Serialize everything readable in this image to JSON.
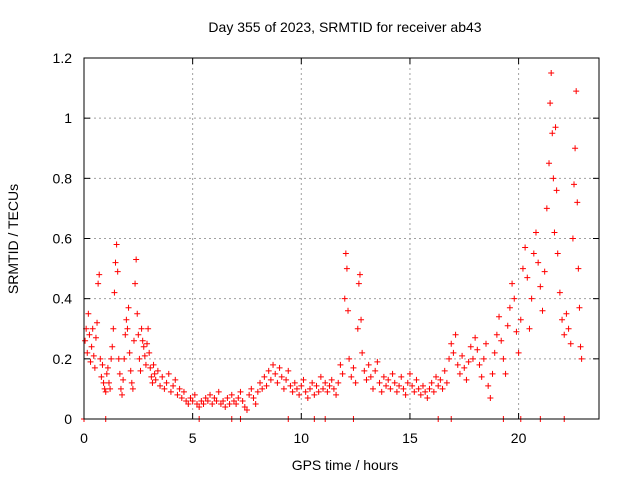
{
  "chart_data": {
    "type": "scatter",
    "title": "Day 355 of 2023, SRMTID for receiver ab43",
    "xlabel": "GPS time / hours",
    "ylabel": "SRMTID / TECUs",
    "xlim": [
      0,
      23.7
    ],
    "ylim": [
      0,
      1.2
    ],
    "xticks": [
      0,
      5,
      10,
      15,
      20
    ],
    "xtick_labels": [
      "0",
      "5",
      "10",
      "15",
      "20"
    ],
    "yticks": [
      0,
      0.2,
      0.4,
      0.6,
      0.8,
      1.0,
      1.2
    ],
    "ytick_labels": [
      "0",
      "0.2",
      "0.4",
      "0.6",
      "0.8",
      "1",
      "1.2"
    ],
    "grid": true,
    "marker": "+",
    "color": "#ff0000",
    "series": [
      {
        "name": "SRMTID",
        "points": [
          [
            0.05,
            0.26
          ],
          [
            0.1,
            0.3
          ],
          [
            0.15,
            0.22
          ],
          [
            0.2,
            0.35
          ],
          [
            0.25,
            0.28
          ],
          [
            0.3,
            0.19
          ],
          [
            0.35,
            0.24
          ],
          [
            0.4,
            0.3
          ],
          [
            0.45,
            0.21
          ],
          [
            0.5,
            0.17
          ],
          [
            0.55,
            0.27
          ],
          [
            0.6,
            0.32
          ],
          [
            0.65,
            0.45
          ],
          [
            0.7,
            0.48
          ],
          [
            0.75,
            0.2
          ],
          [
            0.8,
            0.14
          ],
          [
            0.85,
            0.18
          ],
          [
            0.9,
            0.12
          ],
          [
            0.95,
            0.1
          ],
          [
            1.0,
            0.09
          ],
          [
            1.05,
            0.15
          ],
          [
            1.1,
            0.17
          ],
          [
            1.15,
            0.12
          ],
          [
            1.2,
            0.1
          ],
          [
            1.25,
            0.2
          ],
          [
            1.3,
            0.24
          ],
          [
            1.35,
            0.3
          ],
          [
            1.4,
            0.42
          ],
          [
            1.45,
            0.52
          ],
          [
            1.5,
            0.58
          ],
          [
            1.55,
            0.49
          ],
          [
            1.6,
            0.2
          ],
          [
            1.65,
            0.15
          ],
          [
            1.7,
            0.1
          ],
          [
            1.75,
            0.08
          ],
          [
            1.8,
            0.13
          ],
          [
            1.85,
            0.2
          ],
          [
            1.9,
            0.28
          ],
          [
            1.95,
            0.33
          ],
          [
            2.0,
            0.3
          ],
          [
            2.05,
            0.37
          ],
          [
            2.1,
            0.22
          ],
          [
            2.15,
            0.16
          ],
          [
            2.2,
            0.12
          ],
          [
            2.25,
            0.1
          ],
          [
            2.3,
            0.26
          ],
          [
            2.35,
            0.45
          ],
          [
            2.4,
            0.53
          ],
          [
            2.45,
            0.35
          ],
          [
            2.5,
            0.28
          ],
          [
            2.55,
            0.2
          ],
          [
            2.6,
            0.16
          ],
          [
            2.65,
            0.3
          ],
          [
            2.7,
            0.26
          ],
          [
            2.75,
            0.24
          ],
          [
            2.8,
            0.21
          ],
          [
            2.85,
            0.18
          ],
          [
            2.9,
            0.25
          ],
          [
            2.95,
            0.3
          ],
          [
            3.0,
            0.22
          ],
          [
            3.05,
            0.17
          ],
          [
            3.1,
            0.14
          ],
          [
            3.15,
            0.12
          ],
          [
            3.2,
            0.18
          ],
          [
            3.25,
            0.15
          ],
          [
            3.3,
            0.13
          ],
          [
            3.4,
            0.16
          ],
          [
            3.5,
            0.11
          ],
          [
            3.6,
            0.14
          ],
          [
            3.7,
            0.1
          ],
          [
            3.8,
            0.12
          ],
          [
            3.9,
            0.15
          ],
          [
            4.0,
            0.09
          ],
          [
            4.1,
            0.11
          ],
          [
            4.2,
            0.13
          ],
          [
            4.3,
            0.08
          ],
          [
            4.4,
            0.1
          ],
          [
            4.5,
            0.07
          ],
          [
            4.6,
            0.09
          ],
          [
            4.7,
            0.06
          ],
          [
            4.8,
            0.05
          ],
          [
            4.9,
            0.07
          ],
          [
            5.0,
            0.06
          ],
          [
            5.1,
            0.08
          ],
          [
            5.2,
            0.05
          ],
          [
            5.3,
            0.04
          ],
          [
            5.4,
            0.06
          ],
          [
            5.5,
            0.05
          ],
          [
            5.6,
            0.07
          ],
          [
            5.7,
            0.06
          ],
          [
            5.8,
            0.08
          ],
          [
            5.9,
            0.05
          ],
          [
            6.0,
            0.07
          ],
          [
            6.1,
            0.06
          ],
          [
            6.2,
            0.09
          ],
          [
            6.3,
            0.05
          ],
          [
            6.4,
            0.06
          ],
          [
            6.5,
            0.04
          ],
          [
            6.6,
            0.07
          ],
          [
            6.7,
            0.05
          ],
          [
            6.8,
            0.08
          ],
          [
            6.9,
            0.06
          ],
          [
            7.0,
            0.05
          ],
          [
            7.1,
            0.07
          ],
          [
            7.2,
            0.09
          ],
          [
            7.3,
            0.06
          ],
          [
            7.4,
            0.04
          ],
          [
            7.5,
            0.03
          ],
          [
            7.6,
            0.08
          ],
          [
            7.7,
            0.1
          ],
          [
            7.8,
            0.07
          ],
          [
            7.9,
            0.05
          ],
          [
            8.0,
            0.09
          ],
          [
            8.1,
            0.12
          ],
          [
            8.2,
            0.1
          ],
          [
            8.3,
            0.14
          ],
          [
            8.4,
            0.11
          ],
          [
            8.5,
            0.16
          ],
          [
            8.6,
            0.13
          ],
          [
            8.7,
            0.18
          ],
          [
            8.8,
            0.15
          ],
          [
            8.9,
            0.12
          ],
          [
            9.0,
            0.17
          ],
          [
            9.1,
            0.14
          ],
          [
            9.2,
            0.1
          ],
          [
            9.3,
            0.13
          ],
          [
            9.4,
            0.16
          ],
          [
            9.5,
            0.11
          ],
          [
            9.6,
            0.09
          ],
          [
            9.7,
            0.12
          ],
          [
            9.8,
            0.1
          ],
          [
            9.9,
            0.08
          ],
          [
            10.0,
            0.11
          ],
          [
            10.1,
            0.13
          ],
          [
            10.2,
            0.09
          ],
          [
            10.3,
            0.07
          ],
          [
            10.4,
            0.1
          ],
          [
            10.5,
            0.12
          ],
          [
            10.6,
            0.08
          ],
          [
            10.7,
            0.11
          ],
          [
            10.8,
            0.09
          ],
          [
            10.9,
            0.14
          ],
          [
            11.0,
            0.1
          ],
          [
            11.1,
            0.12
          ],
          [
            11.2,
            0.09
          ],
          [
            11.3,
            0.11
          ],
          [
            11.4,
            0.13
          ],
          [
            11.5,
            0.1
          ],
          [
            11.6,
            0.08
          ],
          [
            11.7,
            0.12
          ],
          [
            11.8,
            0.18
          ],
          [
            11.9,
            0.15
          ],
          [
            12.0,
            0.4
          ],
          [
            12.05,
            0.55
          ],
          [
            12.1,
            0.5
          ],
          [
            12.15,
            0.36
          ],
          [
            12.2,
            0.2
          ],
          [
            12.3,
            0.14
          ],
          [
            12.4,
            0.17
          ],
          [
            12.5,
            0.12
          ],
          [
            12.6,
            0.3
          ],
          [
            12.65,
            0.45
          ],
          [
            12.7,
            0.48
          ],
          [
            12.75,
            0.33
          ],
          [
            12.8,
            0.22
          ],
          [
            12.9,
            0.16
          ],
          [
            13.0,
            0.13
          ],
          [
            13.1,
            0.18
          ],
          [
            13.2,
            0.14
          ],
          [
            13.3,
            0.1
          ],
          [
            13.4,
            0.16
          ],
          [
            13.5,
            0.19
          ],
          [
            13.6,
            0.12
          ],
          [
            13.7,
            0.09
          ],
          [
            13.8,
            0.14
          ],
          [
            13.9,
            0.11
          ],
          [
            14.0,
            0.13
          ],
          [
            14.1,
            0.1
          ],
          [
            14.2,
            0.15
          ],
          [
            14.3,
            0.12
          ],
          [
            14.4,
            0.09
          ],
          [
            14.5,
            0.11
          ],
          [
            14.6,
            0.14
          ],
          [
            14.7,
            0.1
          ],
          [
            14.8,
            0.08
          ],
          [
            14.9,
            0.12
          ],
          [
            15.0,
            0.15
          ],
          [
            15.1,
            0.11
          ],
          [
            15.2,
            0.09
          ],
          [
            15.3,
            0.13
          ],
          [
            15.4,
            0.1
          ],
          [
            15.5,
            0.08
          ],
          [
            15.6,
            0.11
          ],
          [
            15.7,
            0.09
          ],
          [
            15.8,
            0.07
          ],
          [
            15.9,
            0.1
          ],
          [
            16.0,
            0.12
          ],
          [
            16.1,
            0.09
          ],
          [
            16.2,
            0.14
          ],
          [
            16.3,
            0.11
          ],
          [
            16.4,
            0.13
          ],
          [
            16.5,
            0.1
          ],
          [
            16.6,
            0.16
          ],
          [
            16.7,
            0.12
          ],
          [
            16.8,
            0.2
          ],
          [
            16.9,
            0.25
          ],
          [
            17.0,
            0.22
          ],
          [
            17.1,
            0.28
          ],
          [
            17.2,
            0.18
          ],
          [
            17.3,
            0.15
          ],
          [
            17.4,
            0.21
          ],
          [
            17.5,
            0.17
          ],
          [
            17.6,
            0.13
          ],
          [
            17.7,
            0.19
          ],
          [
            17.8,
            0.24
          ],
          [
            17.9,
            0.2
          ],
          [
            18.0,
            0.27
          ],
          [
            18.1,
            0.23
          ],
          [
            18.2,
            0.18
          ],
          [
            18.3,
            0.14
          ],
          [
            18.4,
            0.2
          ],
          [
            18.5,
            0.25
          ],
          [
            18.6,
            0.11
          ],
          [
            18.7,
            0.07
          ],
          [
            18.8,
            0.15
          ],
          [
            18.9,
            0.22
          ],
          [
            19.0,
            0.28
          ],
          [
            19.1,
            0.34
          ],
          [
            19.2,
            0.26
          ],
          [
            19.3,
            0.2
          ],
          [
            19.4,
            0.15
          ],
          [
            19.5,
            0.31
          ],
          [
            19.6,
            0.37
          ],
          [
            19.7,
            0.45
          ],
          [
            19.8,
            0.4
          ],
          [
            19.9,
            0.29
          ],
          [
            20.0,
            0.22
          ],
          [
            20.1,
            0.33
          ],
          [
            20.2,
            0.5
          ],
          [
            20.3,
            0.57
          ],
          [
            20.4,
            0.47
          ],
          [
            20.5,
            0.3
          ],
          [
            20.6,
            0.4
          ],
          [
            20.7,
            0.55
          ],
          [
            20.8,
            0.62
          ],
          [
            20.9,
            0.52
          ],
          [
            21.0,
            0.44
          ],
          [
            21.1,
            0.36
          ],
          [
            21.2,
            0.49
          ],
          [
            21.3,
            0.7
          ],
          [
            21.4,
            0.85
          ],
          [
            21.45,
            1.05
          ],
          [
            21.5,
            1.15
          ],
          [
            21.55,
            0.95
          ],
          [
            21.6,
            0.8
          ],
          [
            21.65,
            0.62
          ],
          [
            21.7,
            0.97
          ],
          [
            21.75,
            0.76
          ],
          [
            21.8,
            0.55
          ],
          [
            21.9,
            0.42
          ],
          [
            22.0,
            0.33
          ],
          [
            22.1,
            0.28
          ],
          [
            22.2,
            0.35
          ],
          [
            22.3,
            0.3
          ],
          [
            22.4,
            0.25
          ],
          [
            22.5,
            0.6
          ],
          [
            22.55,
            0.78
          ],
          [
            22.6,
            0.9
          ],
          [
            22.65,
            1.09
          ],
          [
            22.7,
            0.72
          ],
          [
            22.75,
            0.5
          ],
          [
            22.8,
            0.37
          ],
          [
            22.85,
            0.24
          ],
          [
            22.9,
            0.2
          ],
          [
            0.0,
            0.0
          ],
          [
            1.0,
            0.0
          ],
          [
            5.3,
            0.0
          ],
          [
            6.8,
            0.0
          ],
          [
            7.2,
            0.0
          ],
          [
            9.4,
            0.0
          ],
          [
            10.6,
            0.0
          ],
          [
            11.1,
            0.0
          ],
          [
            12.4,
            0.0
          ],
          [
            16.3,
            0.0
          ],
          [
            16.9,
            0.0
          ],
          [
            19.3,
            0.0
          ],
          [
            20.1,
            0.0
          ],
          [
            21.0,
            0.0
          ],
          [
            22.1,
            0.0
          ]
        ]
      }
    ]
  }
}
